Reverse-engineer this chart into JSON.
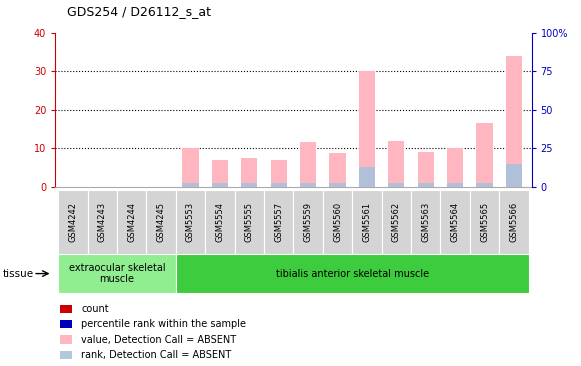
{
  "title": "GDS254 / D26112_s_at",
  "samples": [
    "GSM4242",
    "GSM4243",
    "GSM4244",
    "GSM4245",
    "GSM5553",
    "GSM5554",
    "GSM5555",
    "GSM5557",
    "GSM5559",
    "GSM5560",
    "GSM5561",
    "GSM5562",
    "GSM5563",
    "GSM5564",
    "GSM5565",
    "GSM5566"
  ],
  "pink_values": [
    0,
    0,
    0,
    0,
    10.0,
    7.0,
    7.5,
    7.0,
    11.5,
    8.8,
    30.0,
    12.0,
    9.0,
    10.0,
    16.5,
    34.0
  ],
  "blue_values": [
    0,
    0,
    0,
    0,
    1.0,
    1.0,
    1.0,
    1.0,
    1.0,
    1.0,
    5.0,
    1.0,
    1.0,
    1.0,
    1.0,
    6.0
  ],
  "ylim_left": [
    0,
    40
  ],
  "ylim_right": [
    0,
    100
  ],
  "yticks_left": [
    0,
    10,
    20,
    30,
    40
  ],
  "yticks_right": [
    0,
    25,
    50,
    75,
    100
  ],
  "left_tick_labels": [
    "0",
    "10",
    "20",
    "30",
    "40"
  ],
  "right_tick_labels": [
    "0",
    "25",
    "50",
    "75",
    "100%"
  ],
  "tissue_groups": [
    {
      "label": "extraocular skeletal\nmuscle",
      "start": 0,
      "end": 4,
      "color": "#90ee90"
    },
    {
      "label": "tibialis anterior skeletal muscle",
      "start": 4,
      "end": 16,
      "color": "#3dcc3d"
    }
  ],
  "legend_items": [
    {
      "color": "#cc0000",
      "label": "count"
    },
    {
      "color": "#0000bb",
      "label": "percentile rank within the sample"
    },
    {
      "color": "#ffb6c1",
      "label": "value, Detection Call = ABSENT"
    },
    {
      "color": "#b0c8d8",
      "label": "rank, Detection Call = ABSENT"
    }
  ],
  "tissue_label": "tissue",
  "bar_width": 0.55,
  "pink_color": "#ffb6c1",
  "blue_color": "#b0c0d8",
  "background_color": "#ffffff",
  "left_axis_color": "#cc0000",
  "right_axis_color": "#0000bb",
  "xtick_bg": "#d8d8d8"
}
